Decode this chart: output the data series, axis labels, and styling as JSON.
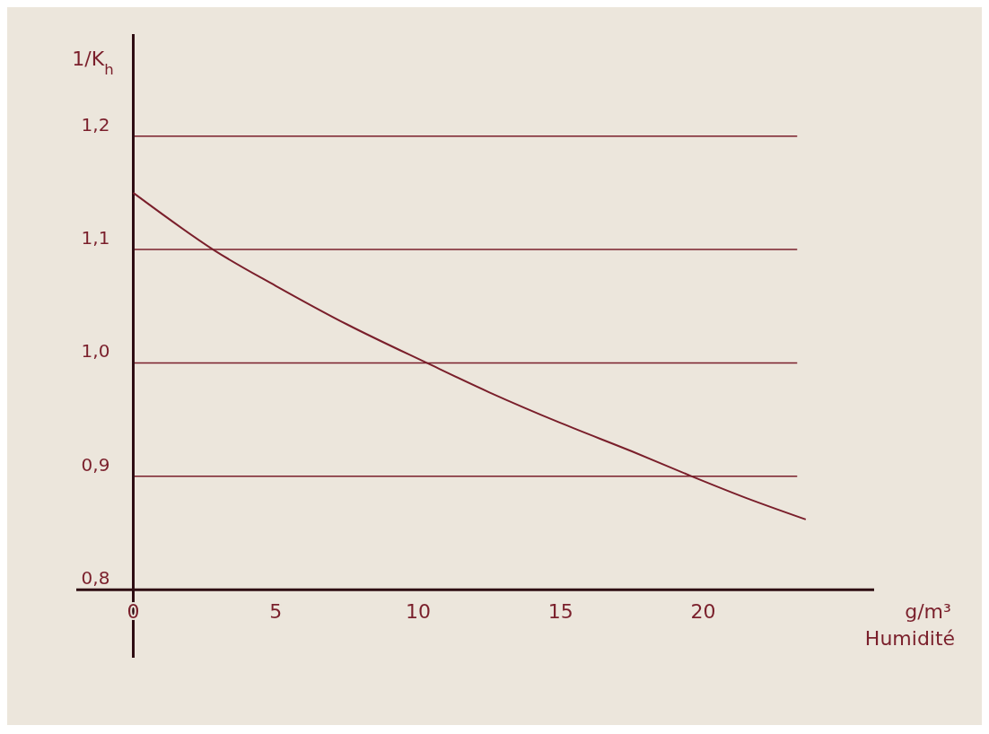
{
  "chart_data": {
    "type": "line",
    "xlabel": "Humidité",
    "ylabel": "1/K$_{h}$",
    "annotations": [
      "g/m³"
    ],
    "x": [
      0,
      2.8,
      5,
      7.5,
      10.3,
      12.5,
      15,
      17.5,
      19.6,
      21.5,
      23.6
    ],
    "series": [
      {
        "color": "#7a1f2b",
        "values": [
          1.15,
          1.1,
          1.068,
          1.034,
          1.0,
          0.974,
          0.947,
          0.922,
          0.9,
          0.881,
          0.862
        ]
      }
    ],
    "xlim": [
      -2,
      26
    ],
    "ylim": [
      0.74,
      1.29
    ],
    "xticks": [
      0,
      5,
      10,
      15,
      20
    ],
    "yticks": [
      {
        "value": 0.8,
        "label": "0,8"
      },
      {
        "value": 0.9,
        "label": "0,9"
      },
      {
        "value": 1.0,
        "label": "1,0"
      },
      {
        "value": 1.1,
        "label": "1,1"
      },
      {
        "value": 1.2,
        "label": "1,2"
      }
    ],
    "grid": "y",
    "line_style": "solid",
    "marker": "none"
  }
}
